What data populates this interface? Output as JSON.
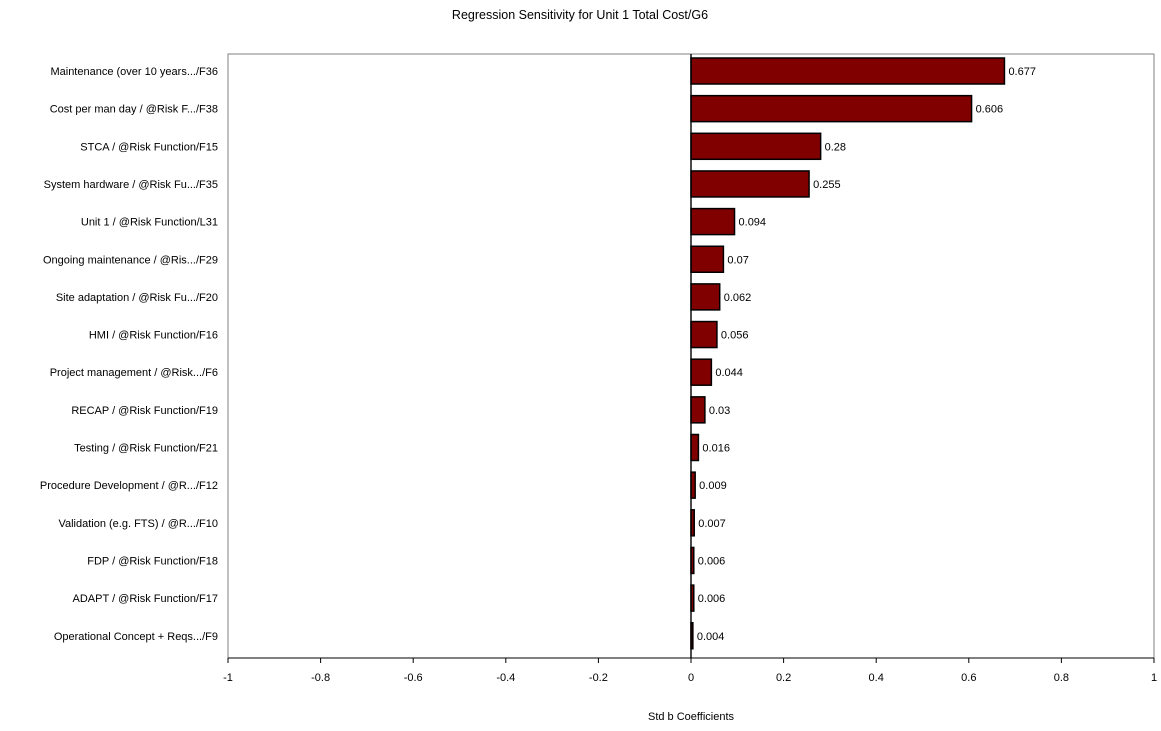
{
  "chart_data": {
    "type": "bar",
    "orientation": "horizontal",
    "title": "Regression Sensitivity for Unit 1 Total Cost/G6",
    "xlabel": "Std b Coefficients",
    "ylabel": "",
    "xlim": [
      -1,
      1
    ],
    "x_ticks": [
      -1,
      -0.8,
      -0.6,
      -0.4,
      -0.2,
      0,
      0.2,
      0.4,
      0.6,
      0.8,
      1
    ],
    "x_tick_labels": [
      "-1",
      "-0.8",
      "-0.6",
      "-0.4",
      "-0.2",
      "0",
      "0.2",
      "0.4",
      "0.6",
      "0.8",
      "1"
    ],
    "grid": false,
    "bar_color": "#800000",
    "categories": [
      "Maintenance (over 10 years.../F36",
      "Cost per man day / @Risk F.../F38",
      "STCA / @Risk Function/F15",
      "System hardware / @Risk Fu.../F35",
      "Unit 1 / @Risk Function/L31",
      "Ongoing maintenance / @Ris.../F29",
      "Site adaptation / @Risk Fu.../F20",
      "HMI / @Risk Function/F16",
      "Project management / @Risk.../F6",
      "RECAP / @Risk Function/F19",
      "Testing / @Risk Function/F21",
      "Procedure Development / @R.../F12",
      "Validation (e.g. FTS) / @R.../F10",
      "FDP / @Risk Function/F18",
      "ADAPT / @Risk Function/F17",
      "Operational Concept + Reqs.../F9"
    ],
    "values": [
      0.677,
      0.606,
      0.28,
      0.255,
      0.094,
      0.07,
      0.062,
      0.056,
      0.044,
      0.03,
      0.016,
      0.009,
      0.007,
      0.006,
      0.006,
      0.004
    ],
    "value_labels": [
      "0.677",
      "0.606",
      "0.28",
      "0.255",
      "0.094",
      "0.07",
      "0.062",
      "0.056",
      "0.044",
      "0.03",
      "0.016",
      "0.009",
      "0.007",
      "0.006",
      "0.006",
      "0.004"
    ]
  }
}
